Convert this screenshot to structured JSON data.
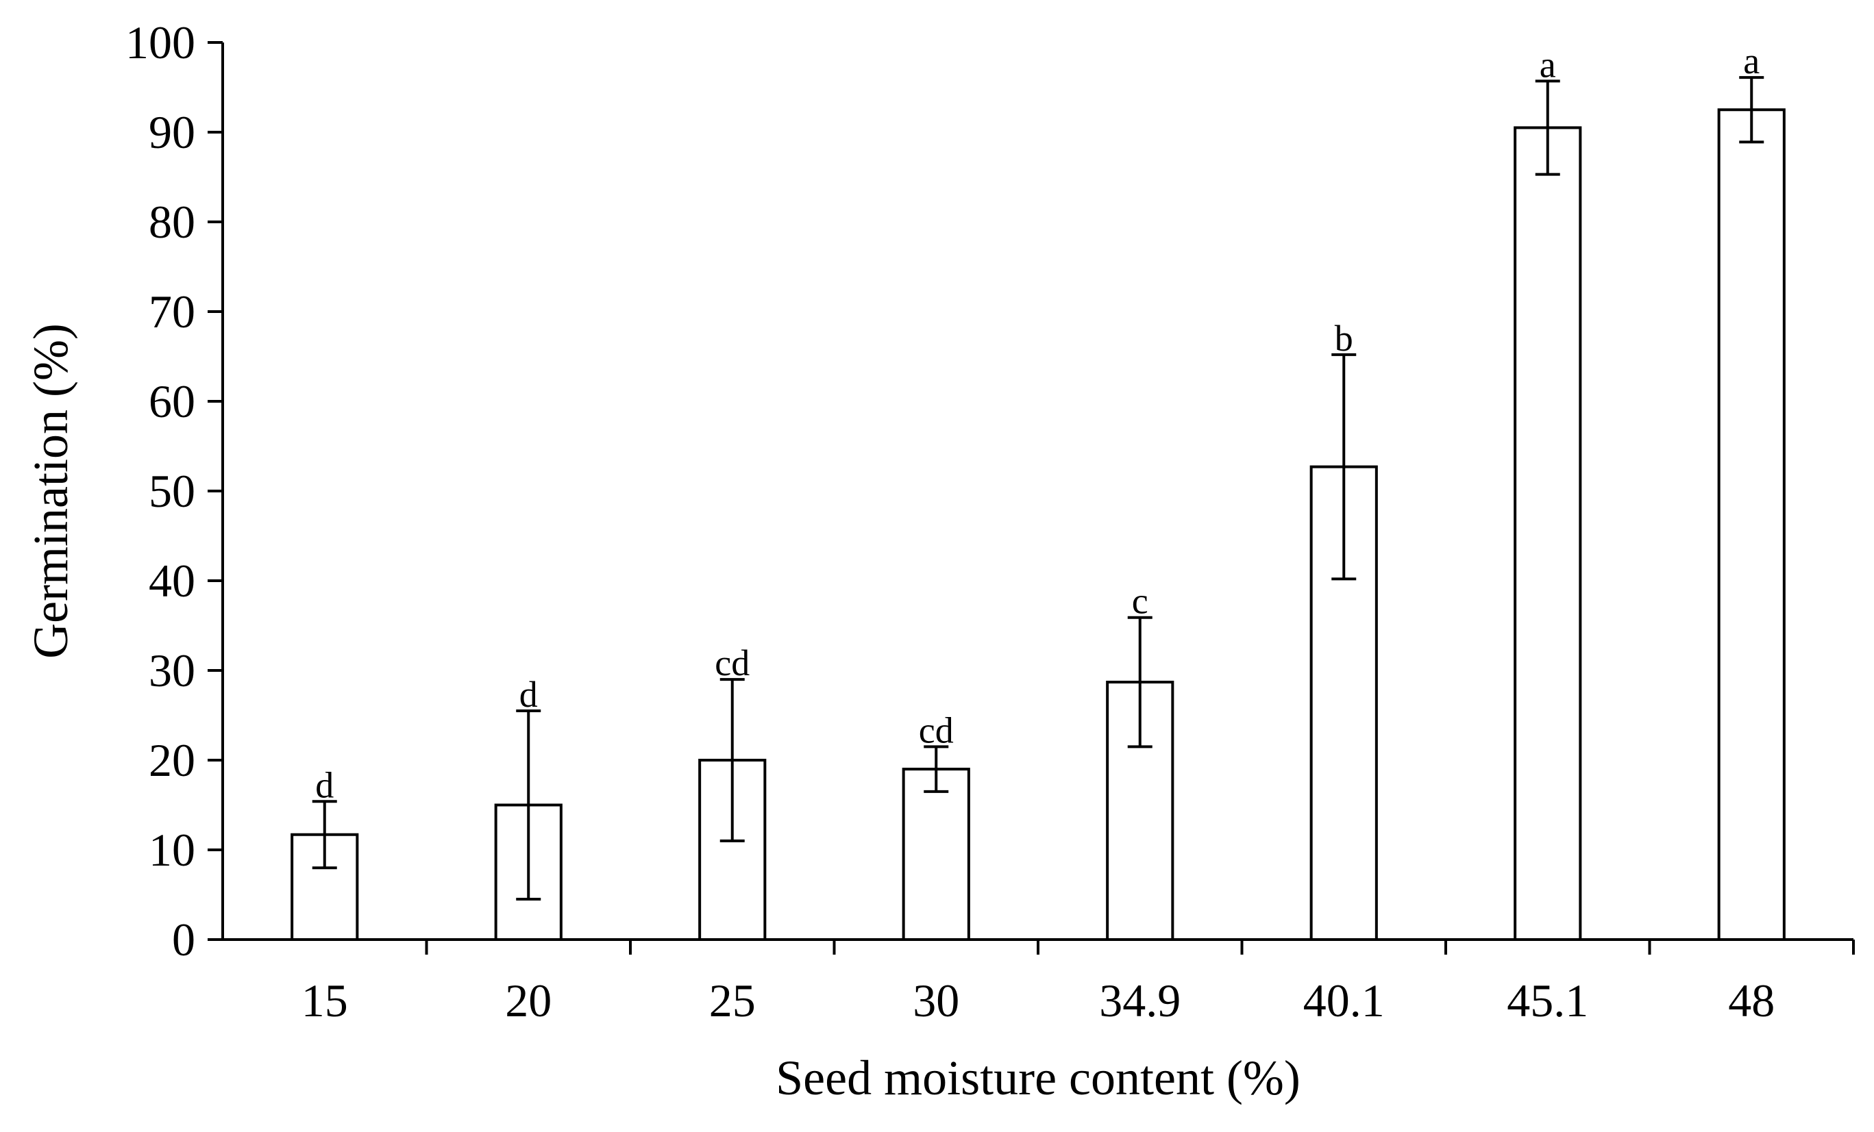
{
  "chart_data": {
    "type": "bar",
    "title": "",
    "xlabel": "Seed moisture content (%)",
    "ylabel": "Germination (%)",
    "categories": [
      "15",
      "20",
      "25",
      "30",
      "34.9",
      "40.1",
      "45.1",
      "48"
    ],
    "values": [
      11.7,
      15.0,
      20.0,
      19.0,
      28.7,
      52.7,
      90.5,
      92.5
    ],
    "error": [
      3.7,
      10.5,
      9.0,
      2.5,
      7.2,
      12.5,
      5.2,
      3.6
    ],
    "significance_letters": [
      "d",
      "d",
      "cd",
      "cd",
      "c",
      "b",
      "a",
      "a"
    ],
    "ylim": [
      0,
      100
    ],
    "y_ticks": [
      "0",
      "10",
      "20",
      "30",
      "40",
      "50",
      "60",
      "70",
      "80",
      "90",
      "100"
    ],
    "grid": false,
    "legend": "none",
    "bar_fill": "#ffffff",
    "bar_stroke": "#000000"
  }
}
